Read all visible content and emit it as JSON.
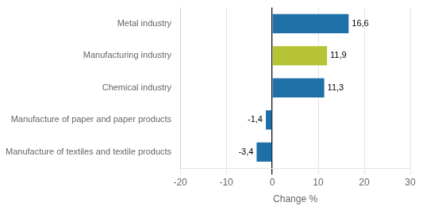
{
  "chart_data": {
    "type": "bar",
    "orientation": "horizontal",
    "categories": [
      "Manufacture of textiles and textile products",
      "Manufacture of paper and paper products",
      "Chemical industry",
      "Manufacturing industry",
      "Metal industry"
    ],
    "values": [
      -3.4,
      -1.4,
      11.3,
      11.9,
      16.6
    ],
    "value_labels": [
      "-3,4",
      "-1,4",
      "11,3",
      "11,9",
      "16,6"
    ],
    "data_labels": true,
    "colors": [
      "#1f6fa8",
      "#1f6fa8",
      "#1f6fa8",
      "#b5c334",
      "#1f6fa8"
    ],
    "xlabel": "Change %",
    "xlim": [
      -20,
      30
    ],
    "xticks": [
      -20,
      -10,
      0,
      10,
      20,
      30
    ],
    "grid": true
  }
}
